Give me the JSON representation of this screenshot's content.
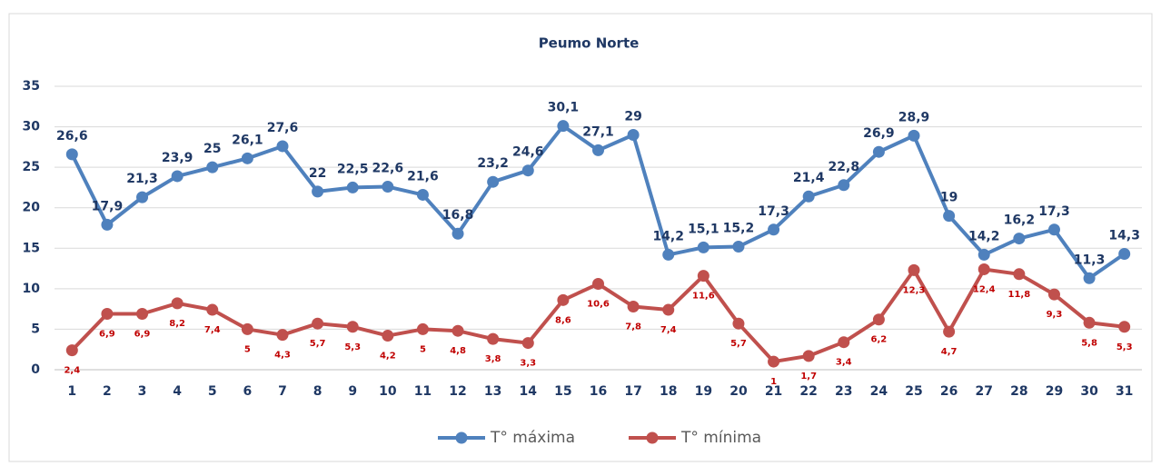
{
  "chart_data": {
    "type": "line",
    "title": "Peumo Norte",
    "categories": [
      "1",
      "2",
      "3",
      "4",
      "5",
      "6",
      "7",
      "8",
      "9",
      "10",
      "11",
      "12",
      "13",
      "14",
      "15",
      "16",
      "17",
      "18",
      "19",
      "20",
      "21",
      "22",
      "23",
      "24",
      "25",
      "26",
      "27",
      "28",
      "29",
      "30",
      "31"
    ],
    "series": [
      {
        "name": "T° máxima",
        "color": "#4f81bd",
        "values": [
          26.6,
          17.9,
          21.3,
          23.9,
          25,
          26.1,
          27.6,
          22,
          22.5,
          22.6,
          21.6,
          16.8,
          23.2,
          24.6,
          30.1,
          27.1,
          29,
          14.2,
          15.1,
          15.2,
          17.3,
          21.4,
          22.8,
          26.9,
          28.9,
          19,
          14.2,
          16.2,
          17.3,
          11.3,
          14.3
        ],
        "value_labels": [
          "26,6",
          "17,9",
          "21,3",
          "23,9",
          "25",
          "26,1",
          "27,6",
          "22",
          "22,5",
          "22,6",
          "21,6",
          "16,8",
          "23,2",
          "24,6",
          "30,1",
          "27,1",
          "29",
          "14,2",
          "15,1",
          "15,2",
          "17,3",
          "21,4",
          "22,8",
          "26,9",
          "28,9",
          "19",
          "14,2",
          "16,2",
          "17,3",
          "11,3",
          "14,3"
        ]
      },
      {
        "name": "T° mínima",
        "color": "#c0504d",
        "values": [
          2.4,
          6.9,
          6.9,
          8.2,
          7.4,
          5,
          4.3,
          5.7,
          5.3,
          4.2,
          5,
          4.8,
          3.8,
          3.3,
          8.6,
          10.6,
          7.8,
          7.4,
          11.6,
          5.7,
          1,
          1.7,
          3.4,
          6.2,
          12.3,
          4.7,
          12.4,
          11.8,
          9.3,
          5.8,
          5.3
        ],
        "value_labels": [
          "2,4",
          "6,9",
          "6,9",
          "8,2",
          "7,4",
          "5",
          "4,3",
          "5,7",
          "5,3",
          "4,2",
          "5",
          "4,8",
          "3,8",
          "3,3",
          "8,6",
          "10,6",
          "7,8",
          "7,4",
          "11,6",
          "5,7",
          "1",
          "1,7",
          "3,4",
          "6,2",
          "12,3",
          "4,7",
          "12,4",
          "11,8",
          "9,3",
          "5,8",
          "5,3"
        ]
      }
    ],
    "ylim": [
      0,
      35
    ],
    "yticks": [
      0,
      5,
      10,
      15,
      20,
      25,
      30,
      35
    ],
    "grid": true,
    "legend": "bottom"
  }
}
